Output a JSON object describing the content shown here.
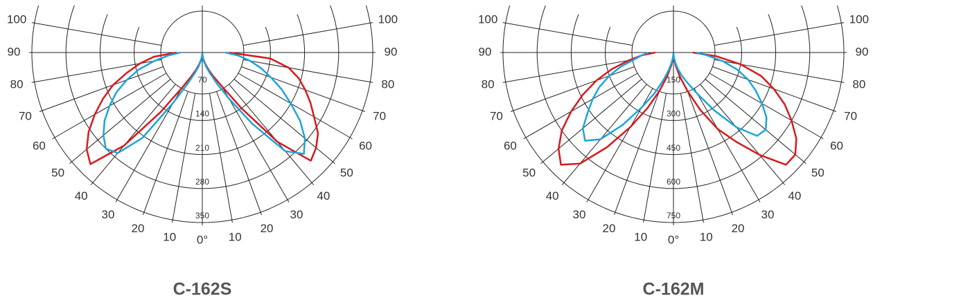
{
  "chart_data": [
    {
      "type": "polar",
      "title": "C-162S",
      "x": [
        -90,
        -85,
        -80,
        -75,
        -70,
        -65,
        -60,
        -55,
        -50,
        -45,
        -40,
        -35,
        -30,
        -25,
        -20,
        -15,
        -10,
        -5,
        0,
        5,
        10,
        15,
        20,
        25,
        30,
        35,
        40,
        45,
        50,
        55,
        60,
        65,
        70,
        75,
        80,
        85,
        90
      ],
      "series": [
        {
          "color": "#d7191c",
          "values": [
            53,
            100,
            130,
            160,
            195,
            225,
            255,
            285,
            310,
            325,
            250,
            150,
            85,
            55,
            38,
            25,
            15,
            7,
            2,
            7,
            15,
            25,
            38,
            55,
            80,
            140,
            240,
            315,
            305,
            290,
            265,
            245,
            225,
            205,
            180,
            140,
            55
          ]
        },
        {
          "color": "#1ca4dc",
          "values": [
            45,
            70,
            100,
            135,
            165,
            195,
            220,
            245,
            265,
            280,
            270,
            215,
            120,
            70,
            45,
            30,
            18,
            8,
            2,
            8,
            18,
            30,
            45,
            70,
            110,
            180,
            265,
            295,
            275,
            245,
            210,
            180,
            150,
            125,
            100,
            75,
            48
          ]
        }
      ],
      "xlim": [
        -100,
        100
      ],
      "xticks": [
        {
          "value": -100,
          "label": "100"
        },
        {
          "value": -90,
          "label": "90"
        },
        {
          "value": -80,
          "label": "80"
        },
        {
          "value": -70,
          "label": "70"
        },
        {
          "value": -60,
          "label": "60"
        },
        {
          "value": -50,
          "label": "50"
        },
        {
          "value": -40,
          "label": "40"
        },
        {
          "value": -30,
          "label": "30"
        },
        {
          "value": -20,
          "label": "20"
        },
        {
          "value": -10,
          "label": "10"
        },
        {
          "value": 0,
          "label": "0°"
        },
        10,
        20,
        30,
        40,
        50,
        60,
        70,
        80,
        90,
        100
      ],
      "ylim": [
        0,
        350
      ],
      "yticks": [
        70,
        140,
        210,
        280,
        350
      ]
    },
    {
      "type": "polar",
      "title": "C-162M",
      "x": [
        -90,
        -85,
        -80,
        -75,
        -70,
        -65,
        -60,
        -55,
        -50,
        -45,
        -40,
        -35,
        -30,
        -25,
        -20,
        -15,
        -10,
        -5,
        0,
        5,
        10,
        15,
        20,
        25,
        30,
        35,
        40,
        45,
        50,
        55,
        60,
        65,
        70,
        75,
        80,
        85,
        90
      ],
      "series": [
        {
          "color": "#d7191c",
          "values": [
            80,
            140,
            200,
            280,
            360,
            440,
            520,
            600,
            660,
            700,
            640,
            510,
            380,
            270,
            180,
            110,
            60,
            25,
            5,
            25,
            60,
            110,
            180,
            280,
            390,
            480,
            590,
            700,
            700,
            660,
            600,
            540,
            470,
            400,
            300,
            190,
            85
          ]
        },
        {
          "color": "#1ca4dc",
          "values": [
            110,
            140,
            175,
            240,
            300,
            360,
            410,
            460,
            520,
            550,
            500,
            390,
            280,
            200,
            130,
            80,
            45,
            18,
            5,
            18,
            45,
            75,
            110,
            150,
            210,
            310,
            430,
            520,
            530,
            500,
            450,
            400,
            350,
            290,
            220,
            150,
            100
          ]
        }
      ],
      "xlim": [
        -100,
        100
      ],
      "xticks": [
        {
          "value": -100,
          "label": "100"
        },
        {
          "value": -90,
          "label": "90"
        },
        {
          "value": -80,
          "label": "80"
        },
        {
          "value": -70,
          "label": "70"
        },
        {
          "value": -60,
          "label": "60"
        },
        {
          "value": -50,
          "label": "50"
        },
        {
          "value": -40,
          "label": "40"
        },
        {
          "value": -30,
          "label": "30"
        },
        {
          "value": -20,
          "label": "20"
        },
        {
          "value": -10,
          "label": "10"
        },
        {
          "value": 0,
          "label": "0°"
        },
        10,
        20,
        30,
        40,
        50,
        60,
        70,
        80,
        90,
        100
      ],
      "ylim": [
        0,
        750
      ],
      "yticks": [
        150,
        300,
        450,
        600,
        750
      ]
    }
  ]
}
